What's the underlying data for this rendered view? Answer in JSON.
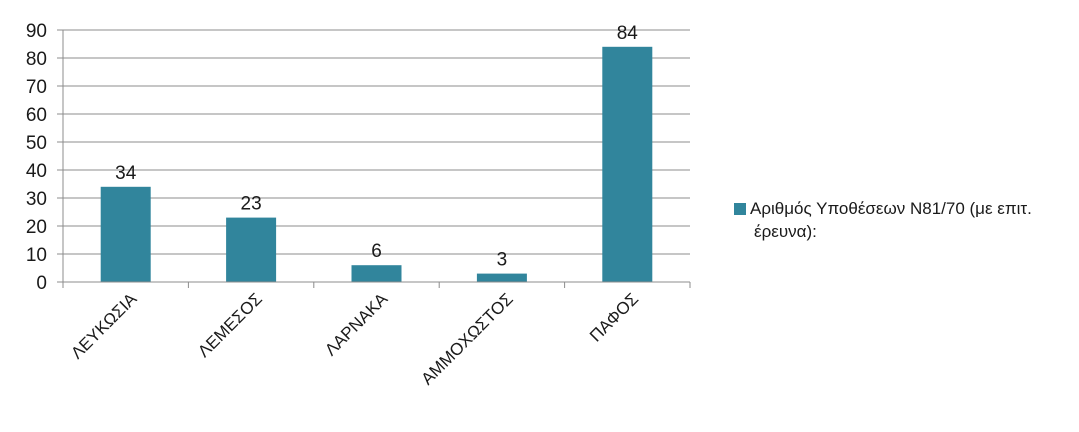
{
  "chart_data": {
    "type": "bar",
    "categories": [
      "ΛΕΥΚΩΣΙΑ",
      "ΛΕΜΕΣΟΣ",
      "ΛΑΡΝΑΚΑ",
      "ΑΜΜΟΧΩΣΤΟΣ",
      "ΠΑΦΟΣ"
    ],
    "series": [
      {
        "name": "Αριθμός Υποθέσεων Ν81/70 (με επιτ. έρευνα):",
        "values": [
          34,
          23,
          6,
          3,
          84
        ]
      }
    ],
    "ylim": [
      0,
      90
    ],
    "yticks": [
      0,
      10,
      20,
      30,
      40,
      50,
      60,
      70,
      80,
      90
    ],
    "grid": true,
    "legend_position": "right",
    "data_labels": true,
    "bar_color": "#31859C",
    "title": "",
    "xlabel": "",
    "ylabel": ""
  }
}
